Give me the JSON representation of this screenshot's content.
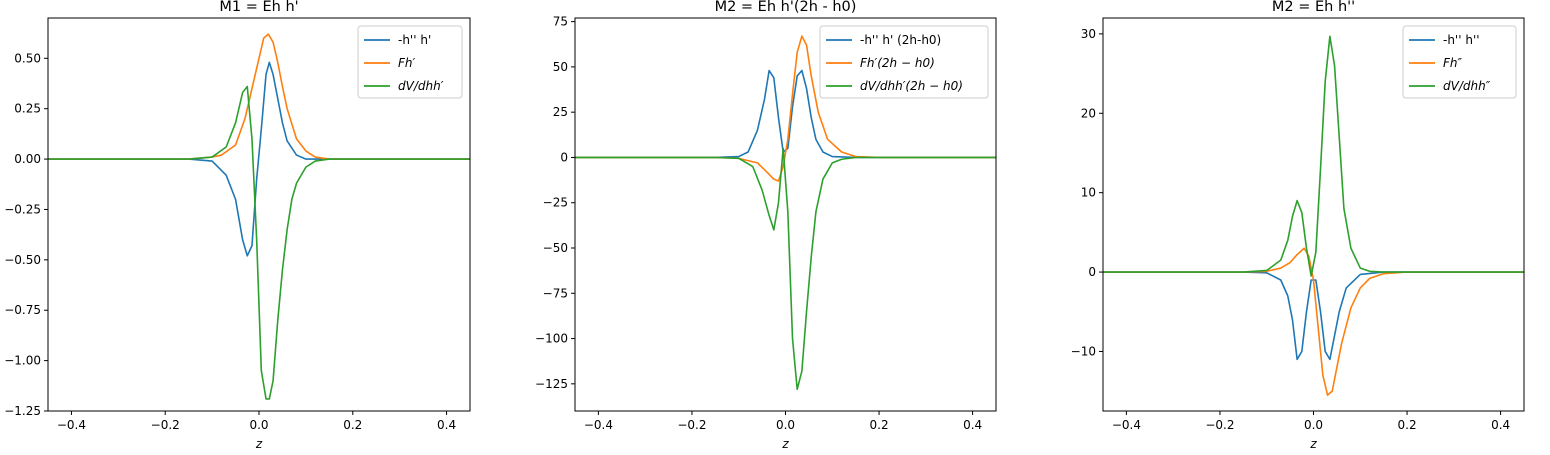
{
  "colors": {
    "blue": "#1f77b4",
    "orange": "#ff7f0e",
    "green": "#2ca02c"
  },
  "chart_data": [
    {
      "type": "line",
      "title": "M1 = Eh h'",
      "xlabel": "z",
      "ylabel": "",
      "xlim": [
        -0.45,
        0.45
      ],
      "ylim": [
        -1.25,
        0.7
      ],
      "xticks": [
        -0.4,
        -0.2,
        0.0,
        0.2,
        0.4
      ],
      "xtick_labels": [
        "−0.4",
        "−0.2",
        "0.0",
        "0.2",
        "0.4"
      ],
      "yticks": [
        0.5,
        0.25,
        0.0,
        -0.25,
        -0.5,
        -0.75,
        -1.0,
        -1.25
      ],
      "ytick_labels": [
        "0.50",
        "0.25",
        "0.00",
        "−0.25",
        "−0.50",
        "−0.75",
        "−1.00",
        "−1.25"
      ],
      "grid": false,
      "legend_position": "top-right",
      "series": [
        {
          "name": "-h'' h'",
          "color": "blue",
          "x": [
            -0.45,
            -0.15,
            -0.1,
            -0.07,
            -0.05,
            -0.035,
            -0.025,
            -0.015,
            -0.005,
            0.005,
            0.015,
            0.022,
            0.03,
            0.04,
            0.05,
            0.06,
            0.08,
            0.1,
            0.15,
            0.45
          ],
          "y": [
            0,
            0,
            -0.01,
            -0.08,
            -0.2,
            -0.4,
            -0.48,
            -0.43,
            -0.1,
            0.15,
            0.42,
            0.48,
            0.42,
            0.3,
            0.18,
            0.09,
            0.02,
            0,
            0,
            0
          ]
        },
        {
          "name": "Fh′",
          "color": "orange",
          "x": [
            -0.45,
            -0.15,
            -0.1,
            -0.08,
            -0.05,
            -0.03,
            -0.015,
            0,
            0.01,
            0.02,
            0.03,
            0.04,
            0.05,
            0.06,
            0.08,
            0.1,
            0.12,
            0.15,
            0.2,
            0.45
          ],
          "y": [
            0,
            0,
            0.01,
            0.02,
            0.07,
            0.2,
            0.35,
            0.5,
            0.6,
            0.62,
            0.58,
            0.48,
            0.36,
            0.25,
            0.1,
            0.04,
            0.01,
            0,
            0,
            0
          ]
        },
        {
          "name": "dV/dhh′",
          "color": "green",
          "x": [
            -0.45,
            -0.15,
            -0.1,
            -0.07,
            -0.05,
            -0.035,
            -0.025,
            -0.015,
            -0.005,
            0.005,
            0.015,
            0.022,
            0.03,
            0.04,
            0.05,
            0.06,
            0.07,
            0.08,
            0.1,
            0.12,
            0.15,
            0.2,
            0.45
          ],
          "y": [
            0,
            0,
            0.01,
            0.06,
            0.18,
            0.33,
            0.36,
            0.1,
            -0.4,
            -1.05,
            -1.19,
            -1.19,
            -1.1,
            -0.8,
            -0.55,
            -0.35,
            -0.2,
            -0.12,
            -0.04,
            -0.01,
            0,
            0,
            0
          ]
        }
      ]
    },
    {
      "type": "line",
      "title": "M2 = Eh h'(2h - h0)",
      "xlabel": "z",
      "ylabel": "",
      "xlim": [
        -0.45,
        0.45
      ],
      "ylim": [
        -140,
        77
      ],
      "xticks": [
        -0.4,
        -0.2,
        0.0,
        0.2,
        0.4
      ],
      "xtick_labels": [
        "−0.4",
        "−0.2",
        "0.0",
        "0.2",
        "0.4"
      ],
      "yticks": [
        75,
        50,
        25,
        0,
        -25,
        -50,
        -75,
        -100,
        -125
      ],
      "ytick_labels": [
        "75",
        "50",
        "25",
        "0",
        "−25",
        "−50",
        "−75",
        "−100",
        "−125"
      ],
      "grid": false,
      "legend_position": "top-right",
      "series": [
        {
          "name": "-h'' h' (2h-h0)",
          "color": "blue",
          "x": [
            -0.45,
            -0.15,
            -0.1,
            -0.08,
            -0.06,
            -0.045,
            -0.035,
            -0.025,
            -0.015,
            -0.005,
            0.005,
            0.015,
            0.025,
            0.035,
            0.045,
            0.055,
            0.065,
            0.08,
            0.1,
            0.15,
            0.45
          ],
          "y": [
            0,
            0,
            0.5,
            3,
            15,
            32,
            48,
            44,
            22,
            3,
            5,
            28,
            45,
            48,
            38,
            22,
            10,
            3,
            0.5,
            0,
            0
          ]
        },
        {
          "name": "Fh′(2h − h0)",
          "color": "orange",
          "x": [
            -0.45,
            -0.15,
            -0.1,
            -0.06,
            -0.04,
            -0.025,
            -0.015,
            -0.005,
            0.005,
            0.015,
            0.025,
            0.035,
            0.045,
            0.055,
            0.07,
            0.09,
            0.12,
            0.15,
            0.2,
            0.45
          ],
          "y": [
            0,
            0,
            -0.5,
            -3,
            -8,
            -12,
            -13,
            -5,
            10,
            35,
            58,
            67,
            62,
            45,
            25,
            10,
            3,
            0.5,
            0,
            0
          ]
        },
        {
          "name": "dV/dhh′(2h − h0)",
          "color": "green",
          "x": [
            -0.45,
            -0.15,
            -0.1,
            -0.07,
            -0.05,
            -0.035,
            -0.025,
            -0.015,
            -0.005,
            0.005,
            0.015,
            0.025,
            0.035,
            0.045,
            0.055,
            0.065,
            0.08,
            0.1,
            0.12,
            0.15,
            0.2,
            0.45
          ],
          "y": [
            0,
            0,
            -0.5,
            -5,
            -18,
            -32,
            -40,
            -25,
            5,
            -30,
            -100,
            -128,
            -118,
            -85,
            -55,
            -30,
            -12,
            -3,
            -1,
            0,
            0,
            0
          ]
        }
      ]
    },
    {
      "type": "line",
      "title": "M2 = Eh h''",
      "xlabel": "z",
      "ylabel": "",
      "xlim": [
        -0.45,
        0.45
      ],
      "ylim": [
        -17.5,
        32
      ],
      "xticks": [
        -0.4,
        -0.2,
        0.0,
        0.2,
        0.4
      ],
      "xtick_labels": [
        "−0.4",
        "−0.2",
        "0.0",
        "0.2",
        "0.4"
      ],
      "yticks": [
        30,
        20,
        10,
        0,
        -10
      ],
      "ytick_labels": [
        "30",
        "20",
        "10",
        "0",
        "−10"
      ],
      "grid": false,
      "legend_position": "top-right",
      "series": [
        {
          "name": "-h'' h''",
          "color": "blue",
          "x": [
            -0.45,
            -0.15,
            -0.1,
            -0.07,
            -0.055,
            -0.045,
            -0.035,
            -0.025,
            -0.015,
            -0.005,
            0.005,
            0.015,
            0.025,
            0.035,
            0.045,
            0.055,
            0.07,
            0.1,
            0.15,
            0.45
          ],
          "y": [
            0,
            0,
            -0.1,
            -1,
            -3,
            -6,
            -11,
            -10,
            -5,
            -1,
            -1,
            -5,
            -10,
            -11,
            -8,
            -5,
            -2,
            -0.3,
            0,
            0
          ]
        },
        {
          "name": "Fh″",
          "color": "orange",
          "x": [
            -0.45,
            -0.15,
            -0.1,
            -0.07,
            -0.05,
            -0.035,
            -0.02,
            -0.01,
            0,
            0.01,
            0.02,
            0.03,
            0.04,
            0.05,
            0.06,
            0.08,
            0.1,
            0.12,
            0.15,
            0.2,
            0.45
          ],
          "y": [
            0,
            0,
            0.1,
            0.5,
            1.2,
            2.2,
            3,
            2,
            -1,
            -7,
            -13,
            -15.5,
            -15,
            -12,
            -9,
            -4.5,
            -2,
            -0.8,
            -0.2,
            0,
            0
          ]
        },
        {
          "name": "dV/dhh″",
          "color": "green",
          "x": [
            -0.45,
            -0.15,
            -0.1,
            -0.07,
            -0.055,
            -0.045,
            -0.035,
            -0.025,
            -0.015,
            -0.005,
            0.005,
            0.015,
            0.025,
            0.035,
            0.045,
            0.055,
            0.065,
            0.08,
            0.1,
            0.12,
            0.15,
            0.45
          ],
          "y": [
            0,
            0,
            0.2,
            1.5,
            4,
            7,
            9,
            7.5,
            3,
            -0.5,
            2.5,
            13,
            24,
            29.7,
            26,
            17,
            8,
            3,
            0.5,
            0.1,
            0,
            0
          ]
        }
      ]
    }
  ]
}
